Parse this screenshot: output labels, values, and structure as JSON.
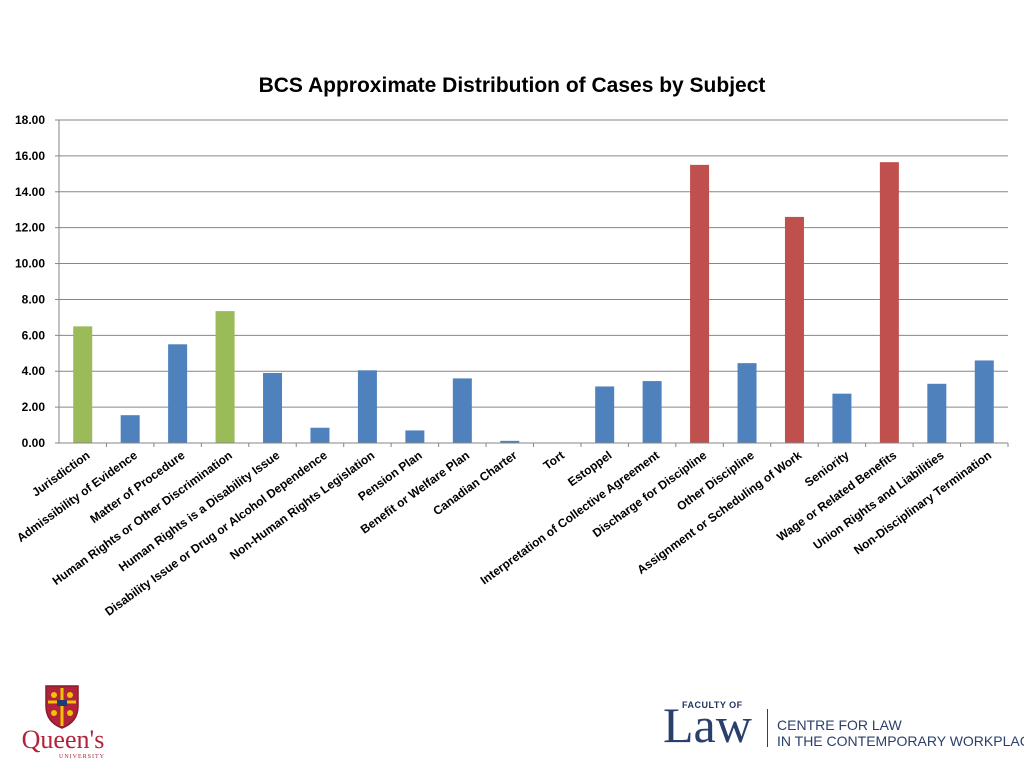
{
  "chart_data": {
    "type": "bar",
    "title": "BCS Approximate Distribution of Cases by Subject",
    "xlabel": "",
    "ylabel": "",
    "ylim": [
      0,
      18
    ],
    "yticks": [
      "0.00",
      "2.00",
      "4.00",
      "6.00",
      "8.00",
      "10.00",
      "12.00",
      "14.00",
      "16.00",
      "18.00"
    ],
    "grid": true,
    "categories": [
      "Jurisdiction",
      "Admissibility of Evidence",
      "Matter of Procedure",
      "Human Rights or Other Discrimination",
      "Human Rights is a Disability Issue",
      "Disability Issue or Drug or Alcohol Dependence",
      "Non-Human Rights Legislation",
      "Pension Plan",
      "Benefit or Welfare Plan",
      "Canadian Charter",
      "Tort",
      "Estoppel",
      "Interpretation of Collective Agreement",
      "Discharge for Discipline",
      "Other Discipline",
      "Assignment or Scheduling of Work",
      "Seniority",
      "Wage or Related Benefits",
      "Union Rights and Liabilities",
      "Non-Disciplinary Termination"
    ],
    "values": [
      6.5,
      1.55,
      5.5,
      7.35,
      3.9,
      0.85,
      4.05,
      0.7,
      3.6,
      0.12,
      0,
      3.15,
      3.45,
      15.5,
      4.45,
      12.6,
      2.75,
      15.65,
      3.3,
      4.6
    ],
    "bar_colors": [
      "#9bbb59",
      "#4f81bd",
      "#4f81bd",
      "#9bbb59",
      "#4f81bd",
      "#4f81bd",
      "#4f81bd",
      "#4f81bd",
      "#4f81bd",
      "#4f81bd",
      "#4f81bd",
      "#4f81bd",
      "#4f81bd",
      "#c0504d",
      "#4f81bd",
      "#c0504d",
      "#4f81bd",
      "#c0504d",
      "#4f81bd",
      "#4f81bd"
    ]
  },
  "colors": {
    "blue": "#4f81bd",
    "green": "#9bbb59",
    "red": "#c0504d",
    "grid": "#868686",
    "law_navy": "#2a3f6b",
    "queens_red": "#b0233a"
  },
  "logos": {
    "queens": {
      "name": "Queen's",
      "sub": "UNIVERSITY"
    },
    "law": {
      "faculty_of": "FACULTY OF",
      "law": "Law",
      "line1": "CENTRE FOR LAW",
      "line2": "IN THE CONTEMPORARY WORKPLACE"
    }
  }
}
